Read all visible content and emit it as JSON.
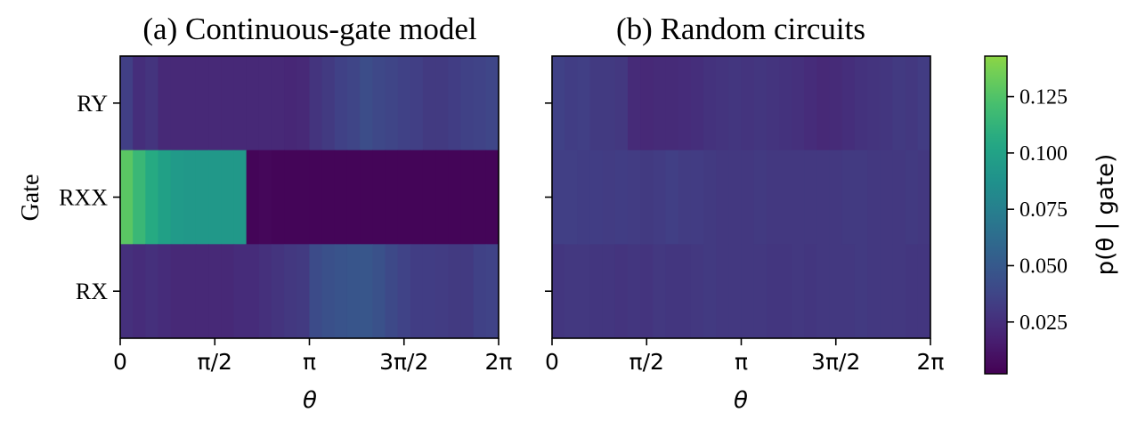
{
  "chart_data": [
    {
      "type": "heatmap",
      "title": "(a) Continuous-gate model",
      "xlabel": "θ",
      "ylabel": "Gate",
      "xlim": [
        0,
        6.2832
      ],
      "x_tick_labels": [
        "0",
        "π/2",
        "π",
        "3π/2",
        "2π"
      ],
      "rows": [
        "RY",
        "RXX",
        "RX"
      ],
      "cell_width_rad": 0.2094,
      "values": {
        "RY": [
          0.034,
          0.025,
          0.028,
          0.022,
          0.022,
          0.022,
          0.022,
          0.022,
          0.022,
          0.022,
          0.022,
          0.022,
          0.022,
          0.021,
          0.022,
          0.028,
          0.031,
          0.035,
          0.037,
          0.042,
          0.039,
          0.037,
          0.035,
          0.034,
          0.031,
          0.031,
          0.033,
          0.035,
          0.036,
          0.038
        ],
        "RXX": [
          0.128,
          0.116,
          0.106,
          0.099,
          0.094,
          0.093,
          0.093,
          0.093,
          0.093,
          0.093,
          0.004,
          0.005,
          0.004,
          0.004,
          0.004,
          0.004,
          0.004,
          0.004,
          0.004,
          0.004,
          0.004,
          0.004,
          0.004,
          0.004,
          0.004,
          0.004,
          0.004,
          0.004,
          0.004,
          0.004
        ],
        "RX": [
          0.026,
          0.024,
          0.026,
          0.024,
          0.022,
          0.022,
          0.022,
          0.022,
          0.022,
          0.024,
          0.024,
          0.026,
          0.028,
          0.03,
          0.031,
          0.041,
          0.044,
          0.046,
          0.047,
          0.048,
          0.045,
          0.04,
          0.036,
          0.033,
          0.033,
          0.032,
          0.031,
          0.031,
          0.035,
          0.036
        ]
      }
    },
    {
      "type": "heatmap",
      "title": "(b) Random circuits",
      "xlabel": "θ",
      "xlim": [
        0,
        6.2832
      ],
      "x_tick_labels": [
        "0",
        "π/2",
        "π",
        "3π/2",
        "2π"
      ],
      "rows": [
        "RY",
        "RXX",
        "RX"
      ],
      "cell_width_rad": 0.2094,
      "values": {
        "RY": [
          0.035,
          0.033,
          0.034,
          0.031,
          0.031,
          0.03,
          0.023,
          0.022,
          0.023,
          0.023,
          0.024,
          0.025,
          0.027,
          0.028,
          0.029,
          0.028,
          0.029,
          0.028,
          0.027,
          0.026,
          0.024,
          0.022,
          0.023,
          0.025,
          0.027,
          0.028,
          0.029,
          0.031,
          0.03,
          0.032
        ],
        "RXX": [
          0.034,
          0.034,
          0.033,
          0.033,
          0.032,
          0.033,
          0.032,
          0.031,
          0.032,
          0.034,
          0.032,
          0.032,
          0.031,
          0.03,
          0.03,
          0.03,
          0.031,
          0.03,
          0.03,
          0.03,
          0.03,
          0.03,
          0.03,
          0.031,
          0.031,
          0.03,
          0.03,
          0.03,
          0.031,
          0.03
        ],
        "RX": [
          0.029,
          0.03,
          0.03,
          0.029,
          0.029,
          0.028,
          0.029,
          0.028,
          0.03,
          0.029,
          0.029,
          0.03,
          0.031,
          0.03,
          0.03,
          0.03,
          0.03,
          0.029,
          0.029,
          0.03,
          0.029,
          0.03,
          0.03,
          0.03,
          0.031,
          0.03,
          0.03,
          0.03,
          0.029,
          0.029
        ]
      }
    }
  ],
  "colorbar": {
    "label": "p(θ | gate)",
    "range": [
      0.002,
      0.143
    ],
    "ticks": [
      0.025,
      0.05,
      0.075,
      0.1,
      0.125
    ],
    "tick_labels": [
      "0.025",
      "0.050",
      "0.075",
      "0.100",
      "0.125"
    ],
    "colormap": "viridis"
  }
}
